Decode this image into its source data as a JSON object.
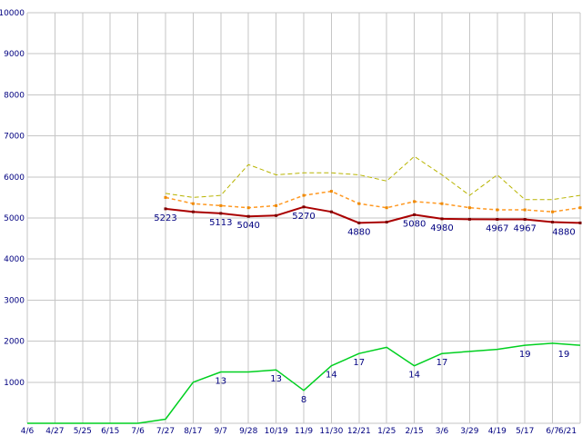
{
  "page": {
    "background": "#ffffff"
  },
  "chart_data": {
    "type": "line",
    "title": "",
    "xlabel": "",
    "ylabel": "",
    "grid": true,
    "legend_position": "none",
    "label_color": "#000080",
    "grid_color": "#c6c6c6",
    "ylim": [
      0,
      10000
    ],
    "y_tick_step": 1000,
    "y_tick_labels": [
      "1000",
      "2000",
      "3000",
      "4000",
      "5000",
      "6000",
      "7000",
      "8000",
      "9000",
      "10000"
    ],
    "x_tick_labels": [
      "4/6",
      "4/27",
      "5/25",
      "6/15",
      "7/6",
      "7/27",
      "8/17",
      "9/7",
      "9/28",
      "10/19",
      "11/9",
      "11/30",
      "12/21",
      "1/25",
      "2/15",
      "3/6",
      "3/29",
      "4/19",
      "5/17",
      "6/7",
      "6/21"
    ],
    "series": [
      {
        "name": "olive-dashed",
        "color": "#b8b400",
        "width": 1,
        "dash": "5 3",
        "markers": false,
        "values": [
          null,
          null,
          null,
          null,
          null,
          5600,
          5500,
          5550,
          6300,
          6050,
          6100,
          6100,
          6050,
          5900,
          6500,
          6050,
          5550,
          6050,
          5450,
          5450,
          5550
        ],
        "labels": null
      },
      {
        "name": "orange-dashed",
        "color": "#ff9922",
        "marker_color": "#ee8800",
        "width": 1.5,
        "dash": "4 3",
        "markers": true,
        "values": [
          null,
          null,
          null,
          null,
          null,
          5500,
          5350,
          5300,
          5250,
          5300,
          5550,
          5650,
          5350,
          5250,
          5400,
          5350,
          5250,
          5200,
          5200,
          5150,
          5250
        ],
        "labels": null
      },
      {
        "name": "red-main",
        "color": "#aa0000",
        "marker_color": "#7a0000",
        "width": 2,
        "dash": "",
        "markers": true,
        "values": [
          null,
          null,
          null,
          null,
          null,
          5223,
          5150,
          5113,
          5040,
          5060,
          5270,
          5150,
          4880,
          4900,
          5080,
          4980,
          4970,
          4967,
          4967,
          4900,
          4880
        ],
        "labels": [
          "",
          "",
          "",
          "",
          "",
          "5223",
          "",
          "5113",
          "5040",
          "",
          "5270",
          "",
          "4880",
          "",
          "5080",
          "4980",
          "",
          "4967",
          "4967",
          "",
          "4880"
        ]
      },
      {
        "name": "green-count",
        "color": "#00d020",
        "width": 1.5,
        "dash": "",
        "markers": false,
        "values": [
          0,
          0,
          0,
          0,
          0,
          100,
          1000,
          1250,
          1250,
          1300,
          800,
          1400,
          1700,
          1850,
          1400,
          1700,
          1750,
          1800,
          1900,
          1950,
          1900
        ],
        "labels": [
          "",
          "",
          "",
          "",
          "",
          "",
          "",
          "13",
          "",
          "13",
          "8",
          "14",
          "17",
          "",
          "14",
          "17",
          "",
          "",
          "19",
          "",
          "19"
        ]
      }
    ]
  }
}
